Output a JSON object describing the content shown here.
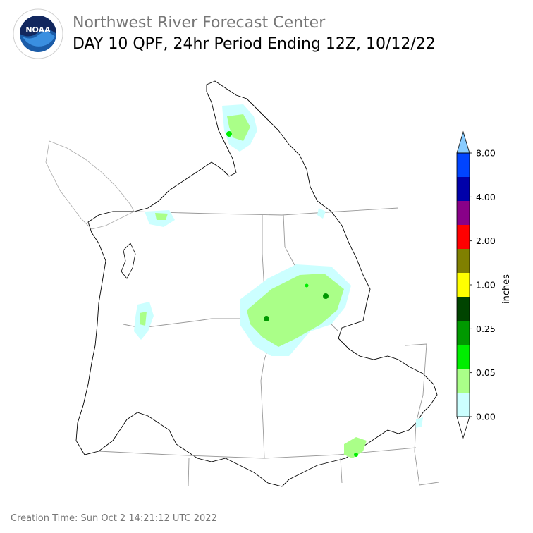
{
  "header": {
    "org_title": "Northwest River Forecast Center",
    "product_title": "DAY 10 QPF, 24hr Period Ending 12Z, 10/12/22",
    "logo": {
      "icon": "noaa-logo-icon",
      "text": "NOAA"
    }
  },
  "map": {
    "outline_color": "#000000",
    "state_border_color": "#999999"
  },
  "legend": {
    "unit_label": "inches",
    "ticks": [
      "0.00",
      "0.05",
      "0.25",
      "1.00",
      "2.00",
      "4.00",
      "8.00"
    ],
    "bins": [
      {
        "color": "#ffffff"
      },
      {
        "color": "#ccffff"
      },
      {
        "color": "#aaff88"
      },
      {
        "color": "#00ee00"
      },
      {
        "color": "#009900"
      },
      {
        "color": "#004400"
      },
      {
        "color": "#ffff00"
      },
      {
        "color": "#808000"
      },
      {
        "color": "#ff0000"
      },
      {
        "color": "#880088"
      },
      {
        "color": "#0000aa"
      },
      {
        "color": "#0044ff"
      },
      {
        "color": "#88ccff"
      }
    ]
  },
  "footer": {
    "creation_time": "Creation Time: Sun Oct 2 14:21:12 UTC 2022"
  }
}
